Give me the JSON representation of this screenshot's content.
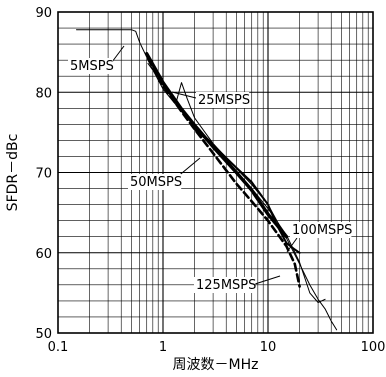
{
  "chart_data": {
    "type": "line",
    "title": "",
    "xlabel": "周波数－MHz",
    "ylabel": "SFDR－dBc",
    "xscale": "log",
    "xlim": [
      0.1,
      100
    ],
    "ylim": [
      50,
      90
    ],
    "grid": true,
    "x_ticks": [
      {
        "value": 0.1,
        "label": "0.1"
      },
      {
        "value": 1,
        "label": "1"
      },
      {
        "value": 10,
        "label": "10"
      },
      {
        "value": 100,
        "label": "100"
      }
    ],
    "y_ticks": [
      {
        "value": 50,
        "label": "50"
      },
      {
        "value": 60,
        "label": "60"
      },
      {
        "value": 70,
        "label": "70"
      },
      {
        "value": 80,
        "label": "80"
      },
      {
        "value": 90,
        "label": "90"
      }
    ],
    "series": [
      {
        "name": "5MSPS",
        "style": "thin-solid",
        "x": [
          0.15,
          0.5,
          0.55,
          0.6,
          0.8,
          1.0,
          1.5,
          2,
          3,
          5,
          7,
          10,
          15,
          20,
          25,
          30,
          35,
          40,
          45
        ],
        "y": [
          87.8,
          87.8,
          87.6,
          86.2,
          82.8,
          80.4,
          77.6,
          75.8,
          73.6,
          70.5,
          68.5,
          66.0,
          61.8,
          58.6,
          56.0,
          54.2,
          53.0,
          51.5,
          50.4
        ]
      },
      {
        "name": "25MSPS",
        "style": "thin-solid",
        "x": [
          0.72,
          1.0,
          1.2,
          1.35,
          1.5,
          1.7,
          2,
          3,
          5,
          7,
          10,
          15,
          20,
          25,
          30,
          35
        ],
        "y": [
          83.6,
          81.0,
          79.4,
          79.0,
          81.2,
          79.2,
          76.8,
          73.6,
          70.2,
          68.0,
          65.5,
          62.2,
          58.8,
          55.0,
          53.8,
          54.2
        ]
      },
      {
        "name": "50MSPS",
        "style": "thick-solid",
        "x": [
          0.7,
          1.0,
          1.5,
          2,
          3,
          5,
          7,
          10,
          15
        ],
        "y": [
          84.8,
          81.2,
          77.9,
          75.9,
          73.2,
          70.0,
          67.8,
          64.8,
          62.0
        ]
      },
      {
        "name": "100MSPS",
        "style": "medium-solid",
        "x": [
          2,
          3,
          5,
          7,
          10,
          12,
          15,
          18,
          20
        ],
        "y": [
          75.4,
          73.4,
          70.6,
          68.8,
          66.0,
          63.6,
          61.2,
          60.4,
          60.0
        ]
      },
      {
        "name": "125MSPS",
        "style": "dashed",
        "x": [
          0.72,
          1.0,
          1.5,
          2,
          3,
          5,
          7,
          10,
          15,
          18,
          20
        ],
        "y": [
          84.2,
          80.8,
          77.6,
          75.4,
          72.4,
          68.6,
          66.4,
          64.0,
          60.8,
          58.6,
          55.8
        ]
      }
    ],
    "annotations": [
      {
        "text": "5MSPS",
        "series": "5MSPS"
      },
      {
        "text": "25MSPS",
        "series": "25MSPS"
      },
      {
        "text": "50MSPS",
        "series": "50MSPS"
      },
      {
        "text": "100MSPS",
        "series": "100MSPS"
      },
      {
        "text": "125MSPS",
        "series": "125MSPS"
      }
    ]
  }
}
